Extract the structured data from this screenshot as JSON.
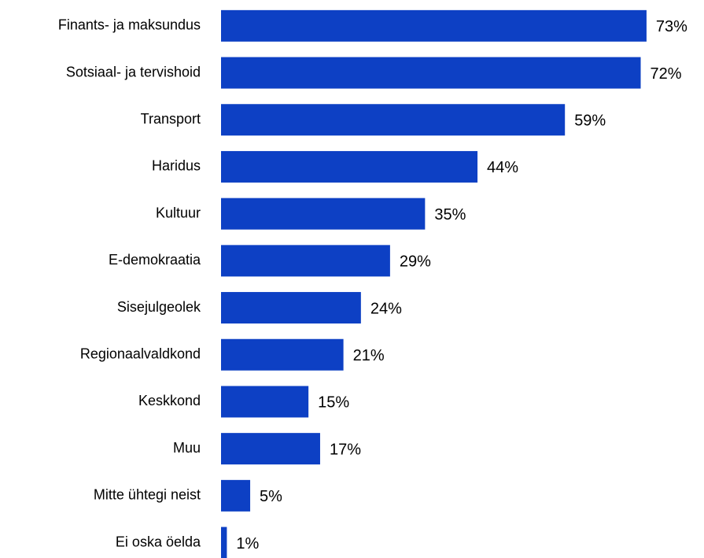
{
  "chart_data": {
    "type": "bar",
    "orientation": "horizontal",
    "categories": [
      "Finants- ja maksundus",
      "Sotsiaal- ja tervishoid",
      "Transport",
      "Haridus",
      "Kultuur",
      "E-demokraatia",
      "Sisejulgeolek",
      "Regionaalvaldkond",
      "Keskkond",
      "Muu",
      "Mitte ühtegi neist",
      "Ei oska öelda"
    ],
    "values": [
      73,
      72,
      59,
      44,
      35,
      29,
      24,
      21,
      15,
      17,
      5,
      1
    ],
    "value_labels": [
      "73%",
      "72%",
      "59%",
      "44%",
      "35%",
      "29%",
      "24%",
      "21%",
      "15%",
      "17%",
      "5%",
      "1%"
    ],
    "color": "#0d40c4",
    "xlim": [
      0,
      100
    ]
  }
}
